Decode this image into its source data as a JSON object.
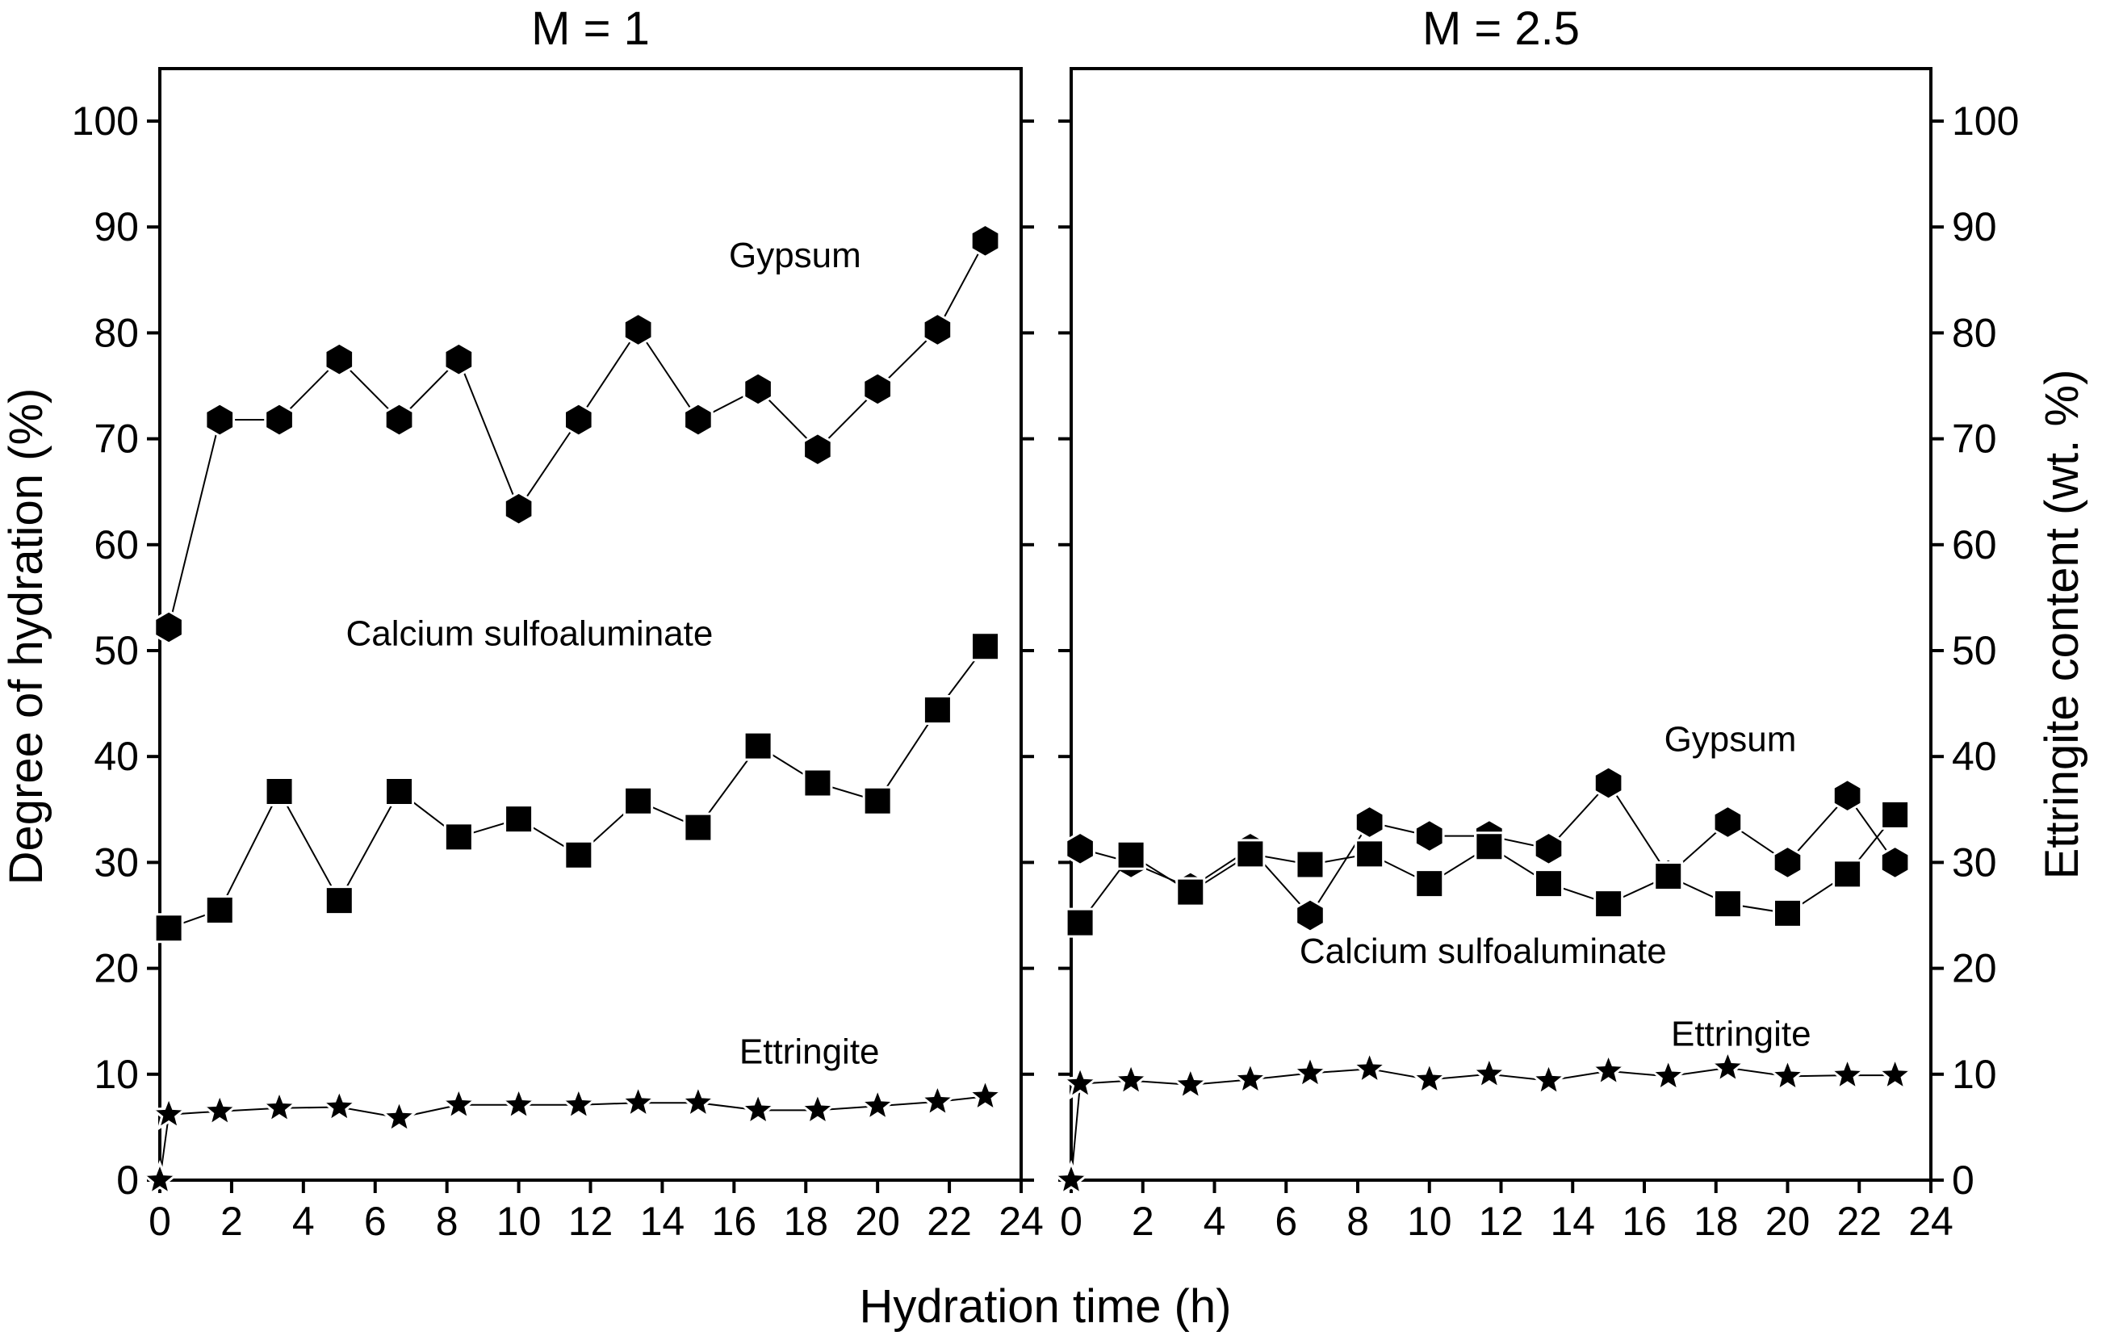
{
  "chart_data": {
    "type": "line",
    "xlabel": "Hydration time (h)",
    "ylabel_left": "Degree of hydration (%)",
    "ylabel_right": "Ettringite content (wt. %)",
    "xlim": [
      0,
      24
    ],
    "ylim": [
      0,
      105
    ],
    "xticks": [
      0,
      2,
      4,
      6,
      8,
      10,
      12,
      14,
      16,
      18,
      20,
      22,
      24
    ],
    "yticks": [
      0,
      10,
      20,
      30,
      40,
      50,
      60,
      70,
      80,
      90,
      100
    ],
    "panels": [
      {
        "title": "M = 1",
        "series": [
          {
            "name": "Gypsum",
            "marker": "hexagon",
            "x": [
              0.25,
              1.67,
              3.33,
              5.0,
              6.67,
              8.33,
              10.0,
              11.67,
              13.33,
              15.0,
              16.67,
              18.33,
              20.0,
              21.67,
              23.0
            ],
            "y": [
              52.2,
              71.8,
              71.8,
              77.5,
              71.8,
              77.5,
              63.4,
              71.8,
              80.3,
              71.8,
              74.7,
              69.0,
              74.7,
              80.3,
              88.7
            ]
          },
          {
            "name": "Calcium sulfoaluminate",
            "marker": "square",
            "x": [
              0.25,
              1.67,
              3.33,
              5.0,
              6.67,
              8.33,
              10.0,
              11.67,
              13.33,
              15.0,
              16.67,
              18.33,
              20.0,
              21.67,
              23.0
            ],
            "y": [
              23.8,
              25.5,
              36.7,
              26.4,
              36.7,
              32.4,
              34.1,
              30.7,
              35.8,
              33.3,
              41.0,
              37.5,
              35.8,
              44.4,
              50.4
            ]
          },
          {
            "name": "Ettringite",
            "marker": "star",
            "x": [
              0.0,
              0.25,
              1.67,
              3.33,
              5.0,
              6.67,
              8.33,
              10.0,
              11.67,
              13.33,
              15.0,
              16.67,
              18.33,
              20.0,
              21.67,
              23.0
            ],
            "y": [
              0.0,
              6.2,
              6.5,
              6.8,
              6.9,
              5.9,
              7.1,
              7.1,
              7.1,
              7.3,
              7.3,
              6.6,
              6.6,
              7.0,
              7.4,
              7.9
            ]
          }
        ]
      },
      {
        "title": "M = 2.5",
        "series": [
          {
            "name": "Gypsum",
            "marker": "hexagon",
            "x": [
              0.25,
              1.67,
              3.33,
              5.0,
              6.67,
              8.33,
              10.0,
              11.67,
              13.33,
              15.0,
              16.67,
              18.33,
              20.0,
              21.67,
              23.0
            ],
            "y": [
              31.3,
              30.0,
              27.6,
              31.3,
              25.0,
              33.8,
              32.5,
              32.5,
              31.3,
              37.5,
              28.8,
              33.8,
              30.0,
              36.3,
              30.0
            ]
          },
          {
            "name": "Calcium sulfoaluminate",
            "marker": "square",
            "x": [
              0.25,
              1.67,
              3.33,
              5.0,
              6.67,
              8.33,
              10.0,
              11.67,
              13.33,
              15.0,
              16.67,
              18.33,
              20.0,
              21.67,
              23.0
            ],
            "y": [
              24.3,
              30.7,
              27.2,
              30.8,
              29.8,
              30.8,
              28.0,
              31.5,
              28.0,
              26.1,
              28.7,
              26.1,
              25.2,
              28.9,
              34.5
            ]
          },
          {
            "name": "Ettringite",
            "marker": "star",
            "x": [
              0.0,
              0.25,
              1.67,
              3.33,
              5.0,
              6.67,
              8.33,
              10.0,
              11.67,
              13.33,
              15.0,
              16.67,
              18.33,
              20.0,
              21.67,
              23.0
            ],
            "y": [
              0.0,
              9.1,
              9.4,
              9.0,
              9.5,
              10.1,
              10.5,
              9.5,
              10.0,
              9.4,
              10.3,
              9.8,
              10.6,
              9.8,
              9.9,
              9.9
            ]
          }
        ]
      }
    ],
    "annotations": [
      {
        "panel": 0,
        "text": "Gypsum",
        "x": 17.7,
        "y": 86.2
      },
      {
        "panel": 0,
        "text": "Calcium sulfoaluminate",
        "x": 10.3,
        "y": 50.5
      },
      {
        "panel": 0,
        "text": "Ettringite",
        "x": 18.1,
        "y": 11.0
      },
      {
        "panel": 1,
        "text": "Gypsum",
        "x": 18.4,
        "y": 40.5
      },
      {
        "panel": 1,
        "text": "Calcium sulfoaluminate",
        "x": 11.5,
        "y": 20.5
      },
      {
        "panel": 1,
        "text": "Ettringite",
        "x": 18.7,
        "y": 12.7
      }
    ]
  }
}
